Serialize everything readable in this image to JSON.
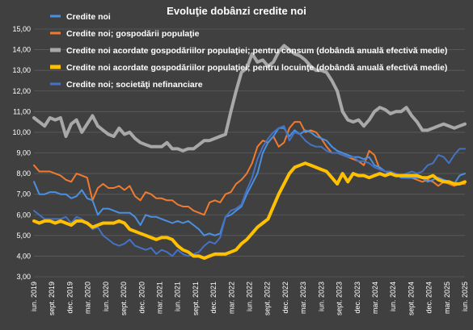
{
  "chart_data": {
    "type": "line",
    "title": "Evoluţie dobânzi credite noi",
    "xlabel": "",
    "ylabel": "",
    "ylim": [
      3.0,
      15.0
    ],
    "yticks": [
      3.0,
      4.0,
      5.0,
      6.0,
      7.0,
      8.0,
      9.0,
      10.0,
      11.0,
      12.0,
      13.0,
      14.0,
      15.0
    ],
    "ytick_labels": [
      "3,00",
      "4,00",
      "5,00",
      "6,00",
      "7,00",
      "8,00",
      "9,00",
      "10,00",
      "11,00",
      "12,00",
      "13,00",
      "14,00",
      "15,00"
    ],
    "grid": "horizontal",
    "legend_position": "top-left",
    "x_labels": [
      "iun. 2019",
      "sept. 2019",
      "dec. 2019",
      "mar. 2020",
      "iun. 2020",
      "sept. 2020",
      "dec. 2020",
      "mar. 2021",
      "iun. 2021",
      "sept. 2021",
      "dec. 2021",
      "mar. 2022",
      "iun. 2022",
      "sept. 2022",
      "dec. 2022",
      "mar. 2023",
      "iun. 2023",
      "sept. 2023",
      "dec. 2023",
      "mar. 2024",
      "iun. 2024",
      "sept. 2024",
      "dec. 2024",
      "mar. 2025",
      "iun. 2025"
    ],
    "series": [
      {
        "name": "Credite noi",
        "color": "#4a90e2",
        "width": 2,
        "values": [
          7.6,
          7.0,
          7.0,
          7.1,
          7.1,
          7.0,
          7.0,
          6.8,
          6.9,
          7.2,
          6.8,
          6.7,
          6.0,
          6.3,
          6.3,
          6.2,
          6.1,
          6.1,
          6.1,
          5.9,
          5.5,
          6.0,
          5.9,
          5.9,
          5.8,
          5.7,
          5.6,
          5.7,
          5.6,
          5.7,
          5.5,
          5.3,
          5.0,
          5.1,
          5.0,
          5.1,
          5.9,
          6.0,
          6.2,
          6.4,
          7.0,
          7.5,
          8.0,
          9.0,
          9.5,
          9.8,
          10.2,
          10.2,
          9.8,
          10.1,
          9.9,
          10.1,
          10.0,
          9.8,
          9.7,
          9.6,
          9.3,
          9.1,
          9.0,
          8.9,
          8.8,
          8.8,
          8.7,
          8.8,
          8.4,
          8.3,
          8.1,
          8.0,
          8.0,
          7.8,
          7.8,
          7.8,
          7.8,
          7.8,
          7.6,
          7.7,
          7.8,
          7.7,
          7.6,
          7.5,
          7.9,
          8.0
        ]
      },
      {
        "name": "Credite noi; gospodării populaţie",
        "color": "#f07b2f",
        "width": 2,
        "values": [
          8.4,
          8.1,
          8.1,
          8.1,
          8.0,
          7.9,
          7.7,
          7.6,
          8.0,
          7.9,
          7.8,
          6.7,
          7.3,
          7.5,
          7.3,
          7.3,
          7.4,
          7.2,
          7.4,
          6.9,
          6.7,
          7.1,
          7.0,
          6.8,
          6.8,
          6.7,
          6.7,
          6.5,
          6.4,
          6.4,
          6.2,
          6.1,
          6.0,
          6.6,
          6.7,
          6.6,
          7.0,
          7.1,
          7.5,
          7.7,
          8.0,
          8.5,
          9.3,
          9.6,
          9.5,
          9.8,
          9.3,
          9.5,
          10.2,
          10.5,
          10.5,
          10.0,
          10.1,
          10.0,
          9.7,
          9.3,
          9.0,
          9.0,
          8.9,
          8.8,
          8.7,
          8.6,
          8.4,
          9.1,
          8.9,
          8.2,
          8.1,
          8.0,
          7.9,
          7.9,
          7.8,
          7.8,
          7.7,
          7.6,
          7.7,
          7.6,
          7.4,
          7.6,
          7.5,
          7.4,
          7.5,
          7.5
        ]
      },
      {
        "name": "Credite noi acordate gospodăriilor populaţiei; pentru consum (dobândă anuală efectivă medie)",
        "color": "#a8a8a8",
        "width": 4,
        "values": [
          10.7,
          10.5,
          10.3,
          10.7,
          10.6,
          10.7,
          9.8,
          10.4,
          10.6,
          10.0,
          10.4,
          10.8,
          10.3,
          10.1,
          9.9,
          9.8,
          10.2,
          9.9,
          10.0,
          9.7,
          9.5,
          9.4,
          9.3,
          9.3,
          9.3,
          9.5,
          9.2,
          9.2,
          9.1,
          9.2,
          9.2,
          9.4,
          9.6,
          9.6,
          9.7,
          9.8,
          9.9,
          11.0,
          12.0,
          12.9,
          13.1,
          13.8,
          13.4,
          13.5,
          13.2,
          13.4,
          13.9,
          14.2,
          14.0,
          13.8,
          13.7,
          13.5,
          13.2,
          13.0,
          13.0,
          12.9,
          12.5,
          12.0,
          11.0,
          10.6,
          10.5,
          10.6,
          10.3,
          10.6,
          11.0,
          11.2,
          11.1,
          10.9,
          11.0,
          11.0,
          11.2,
          10.8,
          10.5,
          10.1,
          10.1,
          10.2,
          10.3,
          10.4,
          10.3,
          10.2,
          10.3,
          10.4
        ]
      },
      {
        "name": "Credite noi acordate gospodăriilor populaţiei; pentru locuinţe (dobândă anuală efectivă medie)",
        "color": "#ffc000",
        "width": 4,
        "values": [
          5.7,
          5.6,
          5.7,
          5.7,
          5.6,
          5.7,
          5.6,
          5.5,
          5.7,
          5.7,
          5.6,
          5.4,
          5.5,
          5.6,
          5.6,
          5.6,
          5.7,
          5.6,
          5.3,
          5.2,
          5.1,
          5.0,
          4.9,
          4.8,
          4.9,
          4.9,
          4.8,
          4.5,
          4.3,
          4.2,
          4.0,
          4.0,
          3.9,
          4.0,
          4.1,
          4.1,
          4.1,
          4.2,
          4.3,
          4.6,
          4.8,
          5.1,
          5.4,
          5.6,
          5.8,
          6.4,
          7.0,
          7.5,
          8.0,
          8.3,
          8.4,
          8.5,
          8.4,
          8.3,
          8.2,
          8.1,
          7.8,
          7.5,
          8.0,
          7.6,
          8.0,
          7.9,
          7.9,
          7.8,
          7.9,
          8.0,
          7.9,
          8.0,
          7.9,
          7.9,
          7.9,
          7.9,
          7.9,
          7.8,
          7.8,
          7.9,
          7.7,
          7.6,
          7.6,
          7.5,
          7.5,
          7.6
        ]
      },
      {
        "name": "Credite noi; societăţi nefinanciare",
        "color": "#4472c4",
        "width": 2,
        "values": [
          6.2,
          6.0,
          5.8,
          5.8,
          5.8,
          5.8,
          5.9,
          5.6,
          5.9,
          5.8,
          5.6,
          5.3,
          5.4,
          5.0,
          4.8,
          4.6,
          4.5,
          4.6,
          4.8,
          4.5,
          4.4,
          4.3,
          4.4,
          4.1,
          4.3,
          4.2,
          4.0,
          4.3,
          4.1,
          4.0,
          4.1,
          4.2,
          4.5,
          4.7,
          4.6,
          4.9,
          5.9,
          6.2,
          6.3,
          6.5,
          7.2,
          7.8,
          8.7,
          9.3,
          9.7,
          10.0,
          10.2,
          10.3,
          9.6,
          10.0,
          9.9,
          9.6,
          9.4,
          9.3,
          9.3,
          9.1,
          9.0,
          9.0,
          8.9,
          8.8,
          8.8,
          8.6,
          8.6,
          8.5,
          8.3,
          8.2,
          8.1,
          8.1,
          8.0,
          7.9,
          8.0,
          8.1,
          8.0,
          8.1,
          8.4,
          8.5,
          8.9,
          8.8,
          8.5,
          8.9,
          9.2,
          9.2
        ]
      }
    ]
  }
}
